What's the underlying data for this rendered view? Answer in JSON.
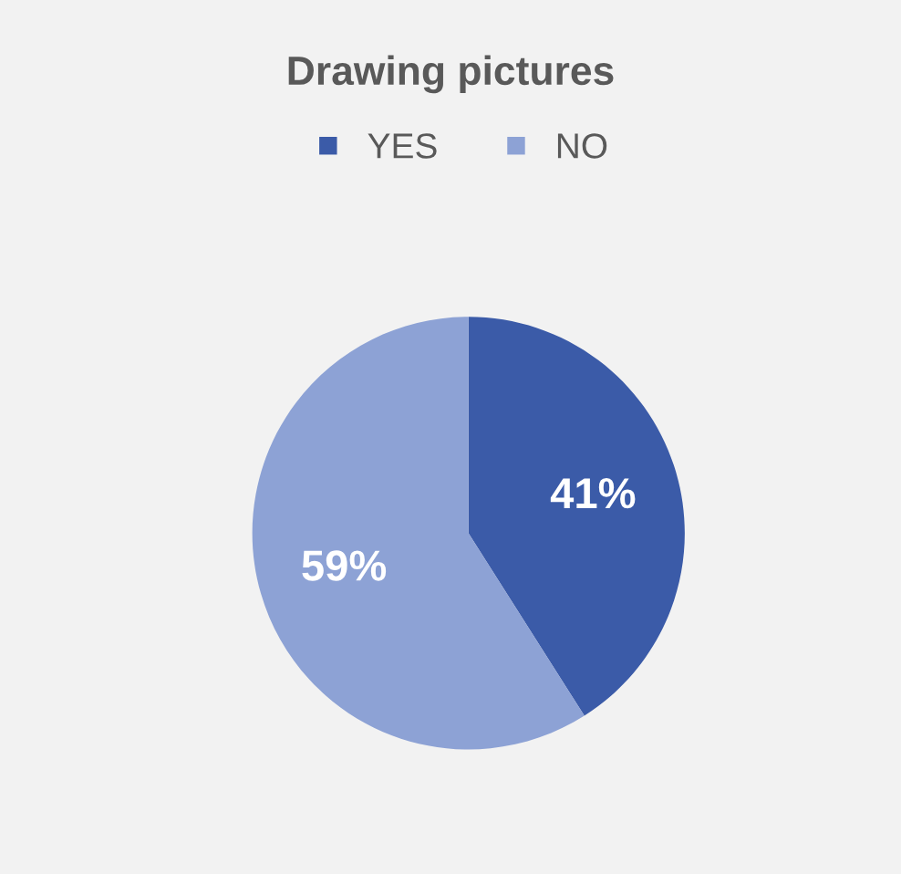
{
  "chart_data": {
    "type": "pie",
    "title": "Drawing pictures",
    "categories": [
      "YES",
      "NO"
    ],
    "values": [
      41,
      59
    ],
    "colors": [
      "#3b5ba8",
      "#8da2d5"
    ],
    "value_labels": [
      "41%",
      "59%"
    ],
    "legend": "top"
  }
}
